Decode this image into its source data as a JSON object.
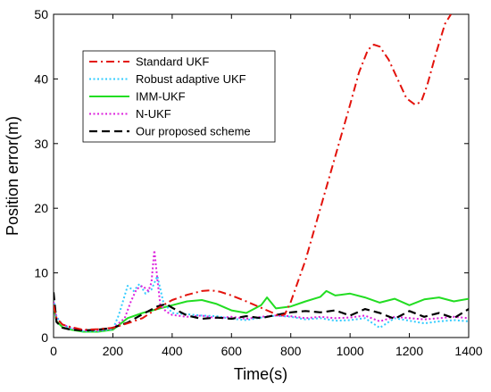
{
  "chart_data": {
    "type": "line",
    "title": "",
    "xlabel": "Time(s)",
    "ylabel": "Position error(m)",
    "xlim": [
      0,
      1400
    ],
    "ylim": [
      0,
      50
    ],
    "xticks": [
      0,
      200,
      400,
      600,
      800,
      1000,
      1200,
      1400
    ],
    "yticks": [
      0,
      10,
      20,
      30,
      40,
      50
    ],
    "grid": false,
    "legend_position": "top-left",
    "series": [
      {
        "name": "Standard UKF",
        "color": "#e3120b",
        "style": "dashdot",
        "x": [
          0,
          10,
          30,
          60,
          100,
          150,
          200,
          250,
          300,
          350,
          400,
          450,
          500,
          530,
          560,
          600,
          650,
          700,
          740,
          760,
          780,
          800,
          850,
          900,
          950,
          1000,
          1030,
          1060,
          1080,
          1100,
          1130,
          1160,
          1190,
          1220,
          1240,
          1260,
          1290,
          1320,
          1340
        ],
        "y": [
          5,
          3,
          2,
          1.6,
          1.2,
          1.3,
          1.5,
          2.2,
          3.0,
          4.5,
          5.8,
          6.6,
          7.2,
          7.3,
          7.1,
          6.5,
          5.6,
          4.6,
          3.8,
          3.3,
          3.6,
          5.5,
          12,
          20,
          28,
          36,
          41,
          44.5,
          45.3,
          45,
          43,
          40,
          37,
          36,
          36.5,
          39,
          44,
          48.5,
          50
        ]
      },
      {
        "name": "Robust adaptive UKF",
        "color": "#33ccff",
        "style": "dotted",
        "x": [
          0,
          10,
          30,
          60,
          100,
          150,
          200,
          220,
          240,
          250,
          270,
          290,
          310,
          330,
          350,
          370,
          400,
          450,
          500,
          550,
          600,
          650,
          700,
          750,
          800,
          850,
          900,
          950,
          1000,
          1050,
          1100,
          1150,
          1200,
          1250,
          1300,
          1350,
          1400
        ],
        "y": [
          6,
          3.2,
          2.0,
          1.4,
          1.0,
          1.0,
          1.3,
          3.5,
          6.5,
          8.0,
          7.2,
          8.3,
          6.8,
          7.4,
          9.5,
          5.5,
          3.8,
          3.6,
          3.4,
          3.3,
          2.9,
          2.7,
          3.1,
          3.4,
          3.2,
          2.8,
          3.0,
          2.6,
          2.7,
          3.0,
          1.5,
          3.0,
          2.6,
          2.2,
          2.5,
          2.7,
          2.5
        ]
      },
      {
        "name": "IMM-UKF",
        "color": "#22dd22",
        "style": "solid",
        "x": [
          0,
          10,
          30,
          60,
          100,
          150,
          200,
          250,
          300,
          350,
          400,
          450,
          500,
          550,
          600,
          650,
          700,
          720,
          750,
          800,
          850,
          900,
          920,
          950,
          1000,
          1050,
          1100,
          1150,
          1200,
          1250,
          1300,
          1350,
          1400
        ],
        "y": [
          5,
          2.5,
          1.6,
          1.2,
          0.9,
          0.9,
          1.2,
          3.0,
          3.8,
          4.4,
          5.0,
          5.6,
          5.8,
          5.2,
          4.2,
          3.8,
          5.0,
          6.2,
          4.5,
          4.8,
          5.6,
          6.3,
          7.2,
          6.5,
          6.8,
          6.2,
          5.4,
          6.0,
          5.0,
          5.9,
          6.2,
          5.6,
          6.0
        ]
      },
      {
        "name": "N-UKF",
        "color": "#dd22dd",
        "style": "dotted",
        "x": [
          0,
          10,
          30,
          60,
          100,
          150,
          200,
          240,
          260,
          280,
          300,
          320,
          330,
          340,
          350,
          360,
          380,
          400,
          450,
          500,
          550,
          600,
          650,
          700,
          750,
          800,
          850,
          900,
          950,
          1000,
          1050,
          1100,
          1150,
          1200,
          1250,
          1300,
          1350,
          1400
        ],
        "y": [
          5.5,
          3.0,
          2.0,
          1.5,
          1.1,
          1.1,
          1.4,
          3.0,
          5.5,
          7.5,
          8.0,
          7.2,
          8.5,
          13.5,
          9.0,
          5.0,
          4.0,
          3.5,
          3.2,
          3.4,
          3.0,
          3.2,
          2.9,
          3.2,
          3.4,
          3.3,
          3.0,
          3.2,
          3.0,
          3.1,
          3.4,
          2.5,
          3.2,
          3.0,
          2.8,
          3.0,
          3.2,
          3.0
        ]
      },
      {
        "name": "Our proposed scheme",
        "color": "#000000",
        "style": "dashed",
        "x": [
          0,
          10,
          30,
          60,
          100,
          150,
          200,
          250,
          300,
          350,
          380,
          400,
          450,
          500,
          550,
          600,
          650,
          700,
          750,
          800,
          850,
          900,
          950,
          1000,
          1050,
          1100,
          1150,
          1200,
          1250,
          1300,
          1350,
          1400
        ],
        "y": [
          7,
          2.4,
          1.5,
          1.2,
          1.1,
          1.2,
          1.5,
          2.3,
          3.6,
          4.8,
          5.2,
          4.6,
          3.4,
          2.9,
          3.1,
          2.9,
          3.3,
          3.0,
          3.5,
          3.9,
          4.1,
          3.9,
          4.2,
          3.4,
          4.4,
          3.8,
          2.9,
          4.1,
          3.2,
          3.8,
          3.0,
          4.4
        ]
      }
    ]
  }
}
